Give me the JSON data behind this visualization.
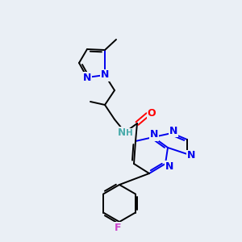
{
  "background_color": "#eaeff5",
  "atom_colors": {
    "C": "#000000",
    "N": "#0000ee",
    "O": "#ff0000",
    "F": "#cc44cc",
    "H": "#4aabab",
    "NH": "#4aabab"
  },
  "figsize": [
    3.0,
    3.0
  ],
  "dpi": 100
}
